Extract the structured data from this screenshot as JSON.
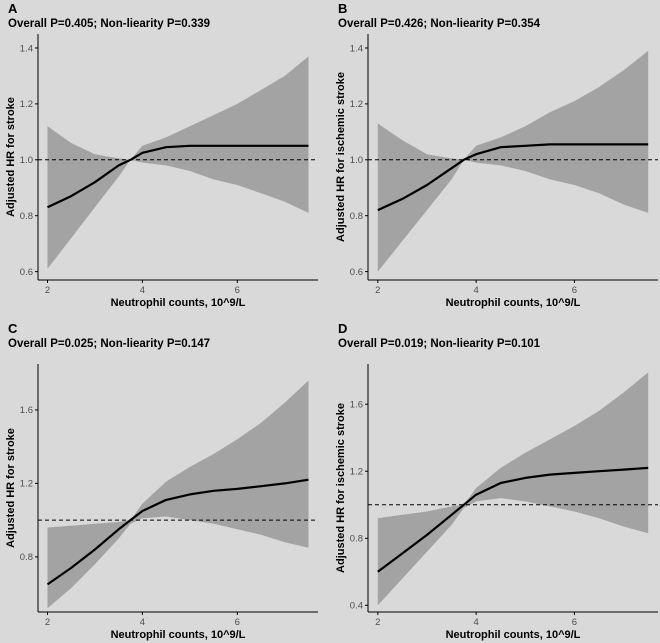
{
  "chart_data": [
    {
      "type": "line",
      "panel_letter": "A",
      "title": "Overall P=0.405; Non-liearity P=0.339",
      "xlabel": "Neutrophil counts, 10^9/L",
      "ylabel": "Adjusted HR for stroke",
      "xlim": [
        1.8,
        7.7
      ],
      "ylim": [
        0.57,
        1.45
      ],
      "xticks": [
        2,
        4,
        6
      ],
      "yticks": [
        0.6,
        0.8,
        1.0,
        1.2,
        1.4
      ],
      "ytick_labels": [
        "0.6",
        "0.8",
        "1.0",
        "1.2",
        "1.4"
      ],
      "reference_line": 1.0,
      "grid": false,
      "x": [
        2.0,
        2.5,
        3.0,
        3.5,
        3.75,
        4.0,
        4.5,
        5.0,
        5.5,
        6.0,
        6.5,
        7.0,
        7.5
      ],
      "y": [
        0.83,
        0.87,
        0.92,
        0.98,
        1.0,
        1.025,
        1.045,
        1.05,
        1.05,
        1.05,
        1.05,
        1.05,
        1.05
      ],
      "ci_lower": [
        0.61,
        0.72,
        0.83,
        0.94,
        1.0,
        0.99,
        0.98,
        0.96,
        0.93,
        0.91,
        0.88,
        0.85,
        0.81
      ],
      "ci_upper": [
        1.12,
        1.06,
        1.02,
        1.005,
        1.0,
        1.05,
        1.08,
        1.12,
        1.16,
        1.2,
        1.25,
        1.3,
        1.37
      ]
    },
    {
      "type": "line",
      "panel_letter": "B",
      "title": "Overall P=0.426; Non-liearity P=0.354",
      "xlabel": "Neutrophil counts, 10^9/L",
      "ylabel": "Adjusted HR for ischemic stroke",
      "xlim": [
        1.8,
        7.7
      ],
      "ylim": [
        0.57,
        1.45
      ],
      "xticks": [
        2,
        4,
        6
      ],
      "yticks": [
        0.6,
        0.8,
        1.0,
        1.2,
        1.4
      ],
      "ytick_labels": [
        "0.6",
        "0.8",
        "1.0",
        "1.2",
        "1.4"
      ],
      "reference_line": 1.0,
      "grid": false,
      "x": [
        2.0,
        2.5,
        3.0,
        3.5,
        3.75,
        4.0,
        4.5,
        5.0,
        5.5,
        6.0,
        6.5,
        7.0,
        7.5
      ],
      "y": [
        0.82,
        0.86,
        0.91,
        0.97,
        1.0,
        1.02,
        1.045,
        1.05,
        1.055,
        1.055,
        1.055,
        1.055,
        1.055
      ],
      "ci_lower": [
        0.6,
        0.71,
        0.82,
        0.93,
        1.0,
        0.99,
        0.98,
        0.96,
        0.93,
        0.91,
        0.88,
        0.84,
        0.81
      ],
      "ci_upper": [
        1.13,
        1.07,
        1.02,
        1.005,
        1.0,
        1.05,
        1.08,
        1.12,
        1.17,
        1.21,
        1.26,
        1.32,
        1.39
      ]
    },
    {
      "type": "line",
      "panel_letter": "C",
      "title": "Overall P=0.025; Non-liearity P=0.147",
      "xlabel": "Neutrophil counts, 10^9/L",
      "ylabel": "Adjusted HR for stroke",
      "xlim": [
        1.8,
        7.7
      ],
      "ylim": [
        0.5,
        1.85
      ],
      "xticks": [
        2,
        4,
        6
      ],
      "yticks": [
        0.8,
        1.2,
        1.6
      ],
      "ytick_labels": [
        "0.8",
        "1.2",
        "1.6"
      ],
      "reference_line": 1.0,
      "grid": false,
      "x": [
        2.0,
        2.5,
        3.0,
        3.5,
        3.75,
        4.0,
        4.5,
        5.0,
        5.5,
        6.0,
        6.5,
        7.0,
        7.5
      ],
      "y": [
        0.65,
        0.74,
        0.84,
        0.95,
        1.0,
        1.05,
        1.11,
        1.14,
        1.16,
        1.17,
        1.185,
        1.2,
        1.22
      ],
      "ci_lower": [
        0.52,
        0.63,
        0.76,
        0.9,
        0.98,
        1.01,
        1.02,
        1.0,
        0.98,
        0.95,
        0.92,
        0.88,
        0.85
      ],
      "ci_upper": [
        0.96,
        0.97,
        0.98,
        0.99,
        1.0,
        1.09,
        1.21,
        1.29,
        1.36,
        1.44,
        1.53,
        1.64,
        1.76
      ]
    },
    {
      "type": "line",
      "panel_letter": "D",
      "title": "Overall P=0.019; Non-liearity P=0.101",
      "xlabel": "Neutrophil counts, 10^9/L",
      "ylabel": "Adjusted HR for ischemic stroke",
      "xlim": [
        1.8,
        7.7
      ],
      "ylim": [
        0.36,
        1.84
      ],
      "xticks": [
        2,
        4,
        6
      ],
      "yticks": [
        0.4,
        0.8,
        1.2,
        1.6
      ],
      "ytick_labels": [
        "0.4",
        "0.8",
        "1.2",
        "1.6"
      ],
      "reference_line": 1.0,
      "grid": false,
      "x": [
        2.0,
        2.5,
        3.0,
        3.5,
        3.75,
        4.0,
        4.5,
        5.0,
        5.5,
        6.0,
        6.5,
        7.0,
        7.5
      ],
      "y": [
        0.6,
        0.71,
        0.82,
        0.94,
        1.0,
        1.06,
        1.13,
        1.16,
        1.18,
        1.19,
        1.2,
        1.21,
        1.22
      ],
      "ci_lower": [
        0.4,
        0.56,
        0.72,
        0.88,
        0.98,
        1.02,
        1.04,
        1.02,
        0.99,
        0.96,
        0.92,
        0.87,
        0.83
      ],
      "ci_upper": [
        0.92,
        0.94,
        0.96,
        0.99,
        1.0,
        1.1,
        1.22,
        1.31,
        1.39,
        1.47,
        1.56,
        1.67,
        1.79
      ]
    }
  ],
  "colors": {
    "background": "#d9d9d9",
    "ribbon": "#a3a3a3",
    "curve": "#000000",
    "reference_line": "#000000",
    "axis": "#000000",
    "tick_text": "#4d4d4d"
  }
}
